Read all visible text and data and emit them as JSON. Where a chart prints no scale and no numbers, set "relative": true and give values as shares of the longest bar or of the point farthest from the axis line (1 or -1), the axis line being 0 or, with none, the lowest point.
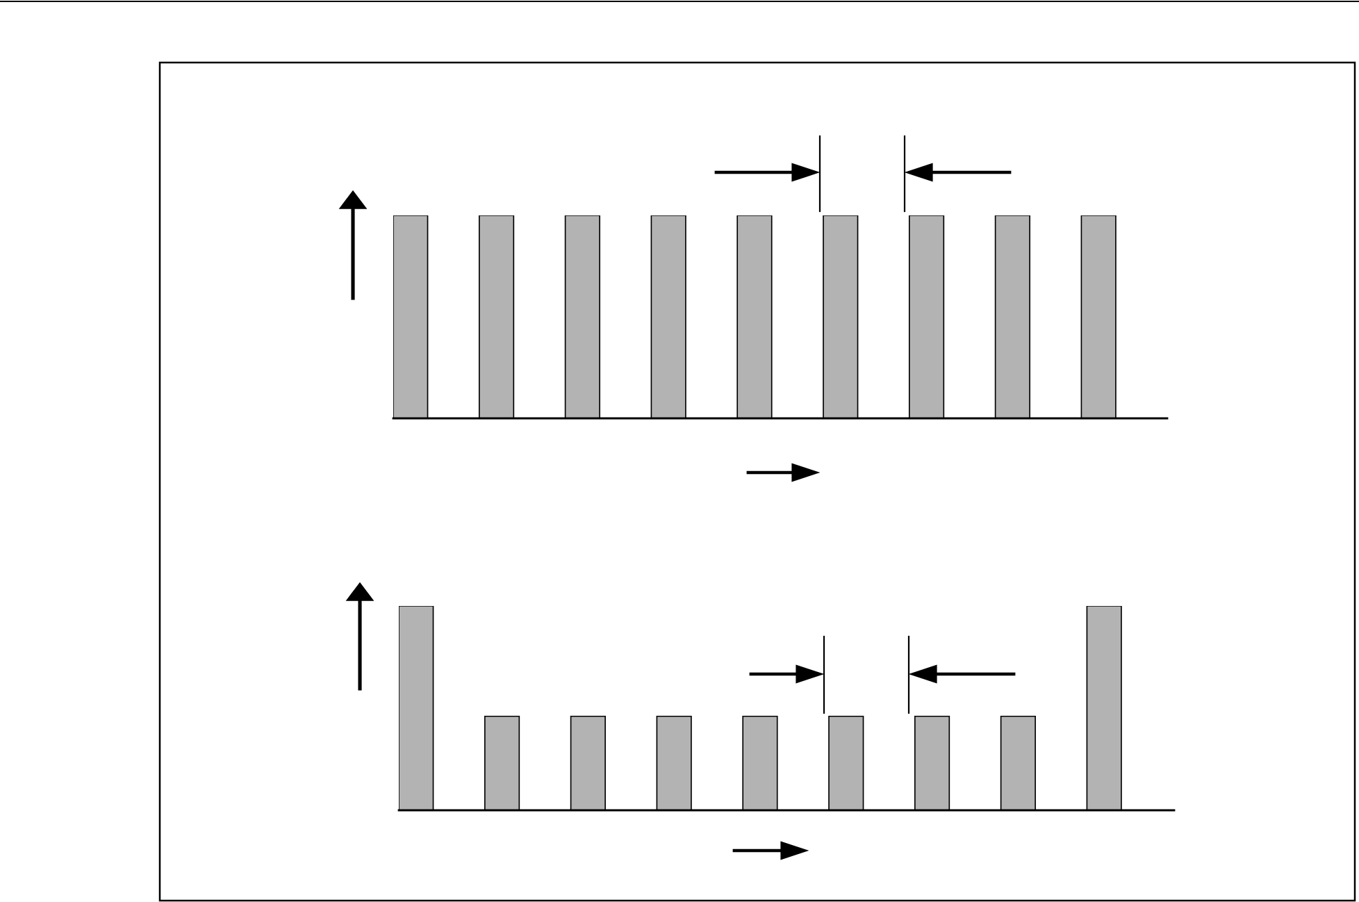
{
  "chart_data": [
    {
      "type": "bar",
      "relative": true,
      "categories": [
        null,
        null,
        null,
        null,
        null,
        null,
        null,
        null,
        null
      ],
      "values": [
        1,
        1,
        1,
        1,
        1,
        1,
        1,
        1,
        1
      ],
      "color": "#b3b3b3"
    },
    {
      "type": "bar",
      "relative": true,
      "categories": [
        null,
        null,
        null,
        null,
        null,
        null,
        null,
        null,
        null
      ],
      "values": [
        1,
        0.46,
        0.46,
        0.46,
        0.46,
        0.46,
        0.46,
        0.46,
        1
      ],
      "color": "#b3b3b3"
    }
  ]
}
